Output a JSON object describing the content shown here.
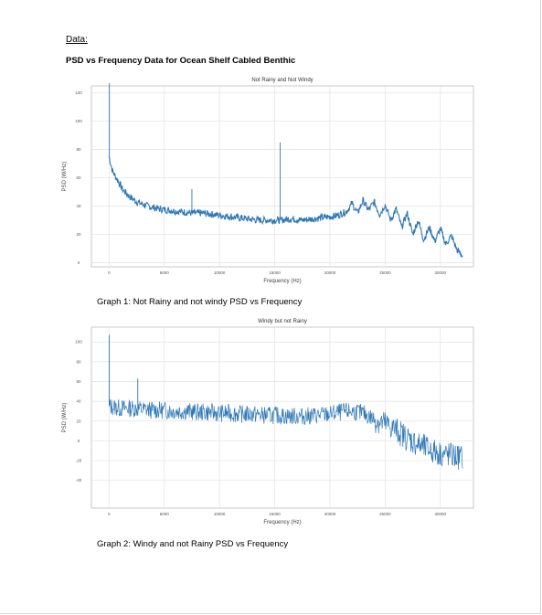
{
  "document": {
    "heading": "Data:",
    "subheading": "PSD vs Frequency Data for Ocean Shelf Cabled Benthic",
    "caption1": "Graph 1: Not Rainy and not windy PSD vs Frequency",
    "caption2": "Graph 2: Windy and not Rainy PSD vs Frequency"
  },
  "chart_data": [
    {
      "type": "line",
      "title": "Not Rainy and Not Windy",
      "xlabel": "Frequency (Hz)",
      "ylabel": "PSD (W/Hz)",
      "xlim": [
        -1600,
        33000
      ],
      "ylim": [
        -3,
        125
      ],
      "grid": true,
      "line_color": "#2f78b5",
      "x_ticks": [
        0,
        5000,
        10000,
        15000,
        20000,
        25000,
        30000
      ],
      "x_tick_labels": [
        "0",
        "5000",
        "10000",
        "15000",
        "20000",
        "25000",
        "30000"
      ],
      "y_ticks": [
        0,
        20,
        40,
        60,
        80,
        100,
        120
      ],
      "y_tick_labels": [
        "0",
        "20",
        "40",
        "60",
        "80",
        "100",
        "120"
      ],
      "x": [
        0,
        150,
        300,
        500,
        800,
        1200,
        1800,
        2500,
        3500,
        4500,
        5500,
        6500,
        7500,
        8500,
        9500,
        10500,
        11500,
        12500,
        13500,
        14500,
        15500,
        16500,
        17500,
        18500,
        19500,
        20500,
        21500,
        22000,
        22500,
        23000,
        23500,
        24000,
        24500,
        25000,
        25500,
        26000,
        26500,
        27000,
        27500,
        28000,
        28500,
        29000,
        29500,
        30000,
        30500,
        31000,
        31500,
        32000
      ],
      "values": [
        75,
        70,
        65,
        62,
        58,
        52,
        47,
        43,
        40,
        38,
        37,
        36,
        35,
        35,
        34,
        33,
        32,
        31,
        30,
        30,
        30,
        31,
        30,
        31,
        32,
        33,
        36,
        42,
        35,
        44,
        37,
        43,
        34,
        41,
        30,
        38,
        25,
        35,
        20,
        30,
        16,
        25,
        15,
        24,
        13,
        19,
        9,
        5
      ],
      "spikes": [
        {
          "x": 30,
          "y": 127
        },
        {
          "x": 7500,
          "y": 52
        },
        {
          "x": 15500,
          "y": 85
        }
      ]
    },
    {
      "type": "line",
      "title": "Windy but not Rainy",
      "xlabel": "Frequency (Hz)",
      "ylabel": "PSD (W/Hz)",
      "xlim": [
        -1600,
        33000
      ],
      "ylim": [
        -68,
        115
      ],
      "grid": true,
      "line_color": "#2f78b5",
      "x_ticks": [
        0,
        5000,
        10000,
        15000,
        20000,
        25000,
        30000
      ],
      "x_tick_labels": [
        "0",
        "5000",
        "10000",
        "15000",
        "20000",
        "25000",
        "30000"
      ],
      "y_ticks": [
        -40,
        -20,
        0,
        20,
        40,
        60,
        80,
        100
      ],
      "y_tick_labels": [
        "-40",
        "-20",
        "0",
        "20",
        "40",
        "60",
        "80",
        "100"
      ],
      "x": [
        0,
        1000,
        2000,
        3000,
        4000,
        5000,
        6000,
        7000,
        8000,
        9000,
        10000,
        11000,
        12000,
        13000,
        14000,
        15000,
        16000,
        17000,
        18000,
        19000,
        20000,
        21000,
        22000,
        23000,
        24000,
        25000,
        26000,
        27000,
        28000,
        29000,
        30000,
        31000,
        32000
      ],
      "values": [
        35,
        33,
        33,
        32,
        31,
        31,
        30,
        30,
        29,
        29,
        28,
        28,
        27,
        27,
        26,
        26,
        25,
        25,
        25,
        26,
        27,
        29,
        30,
        28,
        22,
        17,
        11,
        3,
        -4,
        -9,
        -13,
        -15,
        -17
      ],
      "spikes": [
        {
          "x": 20,
          "y": 107
        },
        {
          "x": 2600,
          "y": 63
        }
      ]
    }
  ]
}
